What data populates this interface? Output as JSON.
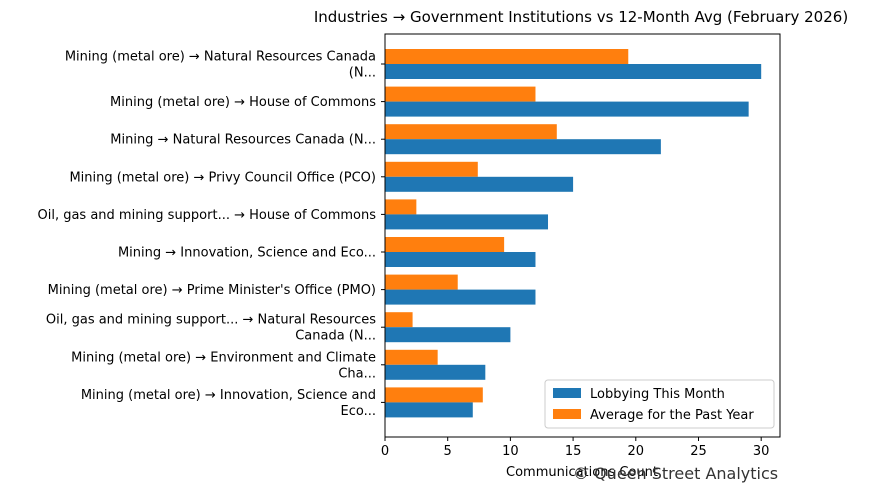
{
  "chart_data": {
    "type": "bar",
    "orientation": "horizontal",
    "title": "Industries → Government Institutions vs 12-Month Avg (February 2026)",
    "xlabel": "Communications Count",
    "ylabel": "",
    "xlim": [
      0,
      31.5
    ],
    "xticks": [
      0,
      5,
      10,
      15,
      20,
      25,
      30
    ],
    "grid": false,
    "legend_position": "lower-right",
    "categories": [
      [
        "Mining (metal ore) → Natural Resources Canada",
        "(N..."
      ],
      [
        "Mining (metal ore) → House of Commons"
      ],
      [
        "Mining → Natural Resources Canada (N..."
      ],
      [
        "Mining (metal ore) → Privy Council Office (PCO)"
      ],
      [
        "Oil, gas and mining support... → House of Commons"
      ],
      [
        "Mining → Innovation, Science and Eco..."
      ],
      [
        "Mining (metal ore) → Prime Minister's Office (PMO)"
      ],
      [
        "Oil, gas and mining support... → Natural Resources",
        "Canada (N..."
      ],
      [
        "Mining (metal ore) → Environment and Climate",
        "Cha..."
      ],
      [
        "Mining (metal ore) → Innovation, Science and",
        "Eco..."
      ]
    ],
    "series": [
      {
        "name": "Lobbying This Month",
        "color": "#1f77b4",
        "values": [
          30,
          29,
          22,
          15,
          13,
          12,
          12,
          10,
          8,
          7
        ]
      },
      {
        "name": "Average for the Past Year",
        "color": "#ff7f0e",
        "values": [
          19.4,
          12,
          13.7,
          7.4,
          2.5,
          9.5,
          5.8,
          2.2,
          4.2,
          7.8
        ]
      }
    ]
  },
  "watermark": "© Queen Street Analytics"
}
